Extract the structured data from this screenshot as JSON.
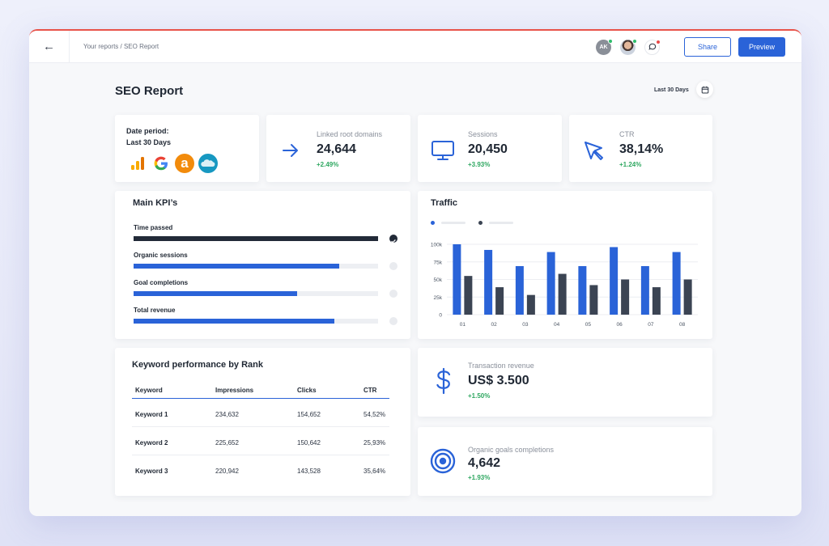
{
  "topbar": {
    "back_icon": "arrow-left-icon",
    "breadcrumb": "Your reports / SEO Report",
    "avatar_initials": "AK",
    "share_label": "Share",
    "preview_label": "Preview"
  },
  "header": {
    "title": "SEO Report",
    "date_range": "Last 30 Days"
  },
  "sources": {
    "label_line1": "Date period:",
    "label_line2": "Last 30 Days",
    "logos": [
      "google-analytics-icon",
      "google-icon",
      "amazon-icon",
      "salesforce-icon"
    ]
  },
  "stats": [
    {
      "label": "Linked root domains",
      "value": "24,644",
      "change": "+2.49%",
      "icon": "arrow-right-icon"
    },
    {
      "label": "Sessions",
      "value": "20,450",
      "change": "+3.93%",
      "icon": "monitor-icon"
    },
    {
      "label": "CTR",
      "value": "38,14%",
      "change": "+1.24%",
      "icon": "cursor-icon"
    }
  ],
  "kpis": {
    "title": "Main KPI’s",
    "items": [
      {
        "label": "Time passed",
        "progress": 1.0,
        "color": "#222a38",
        "done": true
      },
      {
        "label": "Organic sessions",
        "progress": 0.84,
        "color": "#2a63d8",
        "done": false
      },
      {
        "label": "Goal completions",
        "progress": 0.67,
        "color": "#2a63d8",
        "done": false
      },
      {
        "label": "Total revenue",
        "progress": 0.82,
        "color": "#2a63d8",
        "done": false
      }
    ]
  },
  "traffic": {
    "title": "Traffic"
  },
  "chart_data": {
    "type": "bar",
    "title": "Traffic",
    "categories": [
      "01",
      "02",
      "03",
      "04",
      "05",
      "06",
      "07",
      "08"
    ],
    "series": [
      {
        "values": [
          100,
          92,
          69,
          89,
          69,
          96,
          69,
          89
        ],
        "color": "#2a63d8"
      },
      {
        "values": [
          55,
          39,
          28,
          58,
          42,
          50,
          39,
          50
        ],
        "color": "#3b4453"
      }
    ],
    "y_ticks": [
      "0",
      "25k",
      "50k",
      "75k",
      "100k"
    ],
    "ylim": [
      0,
      100
    ],
    "grid": true
  },
  "keywords": {
    "title": "Keyword performance by Rank",
    "columns": [
      "Keyword",
      "Impressions",
      "Clicks",
      "CTR"
    ],
    "rows": [
      [
        "Keyword 1",
        "234,632",
        "154,652",
        "54,52%"
      ],
      [
        "Keyword 2",
        "225,652",
        "150,642",
        "25,93%"
      ],
      [
        "Keyword 3",
        "220,942",
        "143,528",
        "35,64%"
      ]
    ]
  },
  "revenue": {
    "label": "Transaction revenue",
    "value": "US$ 3.500",
    "change": "+1.50%",
    "icon": "dollar-icon"
  },
  "goals": {
    "label": "Organic goals completions",
    "value": "4,642",
    "change": "+1.93%",
    "icon": "target-icon"
  },
  "colors": {
    "accent": "#2a63d8",
    "dark": "#222a38",
    "positive": "#2ea760"
  }
}
